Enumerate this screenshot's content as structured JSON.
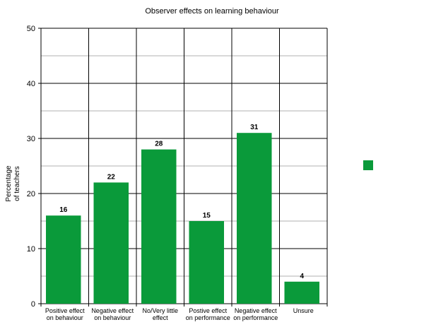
{
  "chart_data": {
    "type": "bar",
    "title": "Observer effects on learning behaviour",
    "ylabel_lines": [
      "Percentage",
      "of teachers"
    ],
    "xlabel": "",
    "categories": [
      [
        "Positive effect",
        "on behaviour"
      ],
      [
        "Negative effect",
        "on behaviour"
      ],
      [
        "No/Very little",
        "effect"
      ],
      [
        "Postive effect",
        "on performance"
      ],
      [
        "Negative effect",
        "on performance"
      ],
      [
        "Unsure"
      ]
    ],
    "values": [
      16,
      22,
      28,
      15,
      31,
      4
    ],
    "data_labels": [
      "16",
      "22",
      "28",
      "15",
      "31",
      "4"
    ],
    "ylim": [
      0,
      50
    ],
    "yticks": [
      0,
      10,
      20,
      30,
      40,
      50
    ],
    "minor_gridlines": [
      5,
      15,
      25,
      35,
      45
    ],
    "grid": true,
    "legend_placement": "right",
    "colors": {
      "bar": "#0a9a3a",
      "major_grid": "#000000",
      "minor_grid": "#b0b0b0"
    }
  }
}
